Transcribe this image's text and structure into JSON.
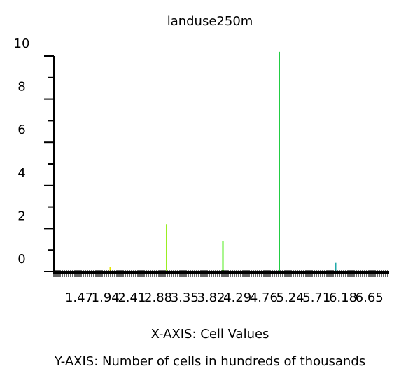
{
  "chart_data": {
    "type": "bar",
    "title": "landuse250m",
    "xlabel": "X-AXIS: Cell Values",
    "ylabel": "Y-AXIS: Number of cells in hundreds of thousands",
    "x_tick_labels": [
      "1.47",
      "1.94",
      "2.41",
      "2.88",
      "3.35",
      "3.82",
      "4.29",
      "4.76",
      "5.24",
      "5.71",
      "6.18",
      "6.65"
    ],
    "y_tick_labels": [
      "0",
      "2",
      "4",
      "6",
      "8",
      "10"
    ],
    "ylim": [
      0,
      10
    ],
    "grid": false,
    "bars": [
      {
        "x": 2.0,
        "value": 0.2,
        "color": "#e6e600"
      },
      {
        "x": 3.0,
        "value": 2.2,
        "color": "#99ee22"
      },
      {
        "x": 4.0,
        "value": 1.4,
        "color": "#55ee22"
      },
      {
        "x": 5.0,
        "value": 10.2,
        "color": "#22cc44"
      },
      {
        "x": 6.0,
        "value": 0.4,
        "color": "#22aaaa"
      }
    ],
    "colors": {
      "axis": "#000000"
    }
  }
}
